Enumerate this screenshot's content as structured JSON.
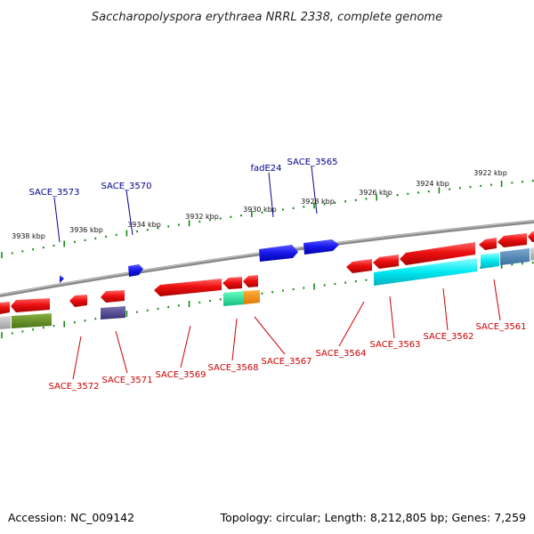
{
  "title": "Saccharopolyspora erythraea NRRL 2338, complete genome",
  "footer": {
    "accession": "Accession: NC_009142",
    "summary": "Topology: circular; Length: 8,212,805 bp; Genes: 7,259"
  },
  "colors": {
    "backbone": "#8a8a8a",
    "forward_gene": "#2020ee",
    "reverse_gene": "#ee1111",
    "tick": "#118811",
    "blue_label": "#00008b",
    "red_label": "#cc0000"
  },
  "scale_ticks": [
    {
      "label": "3938 kbp"
    },
    {
      "label": "3936 kbp"
    },
    {
      "label": "3934 kbp"
    },
    {
      "label": "3932 kbp"
    },
    {
      "label": "3930 kbp"
    },
    {
      "label": "3928 kbp"
    },
    {
      "label": "3926 kbp"
    },
    {
      "label": "3924 kbp"
    },
    {
      "label": "3922 kbp"
    }
  ],
  "forward_gene_labels": [
    {
      "name": "SACE_3573"
    },
    {
      "name": "SACE_3570"
    },
    {
      "name": "fadE24"
    },
    {
      "name": "SACE_3565"
    }
  ],
  "reverse_gene_labels": [
    {
      "name": "SACE_3572"
    },
    {
      "name": "SACE_3571"
    },
    {
      "name": "SACE_3569"
    },
    {
      "name": "SACE_3568"
    },
    {
      "name": "SACE_3567"
    },
    {
      "name": "SACE_3564"
    },
    {
      "name": "SACE_3563"
    },
    {
      "name": "SACE_3562"
    },
    {
      "name": "SACE_3561"
    }
  ]
}
